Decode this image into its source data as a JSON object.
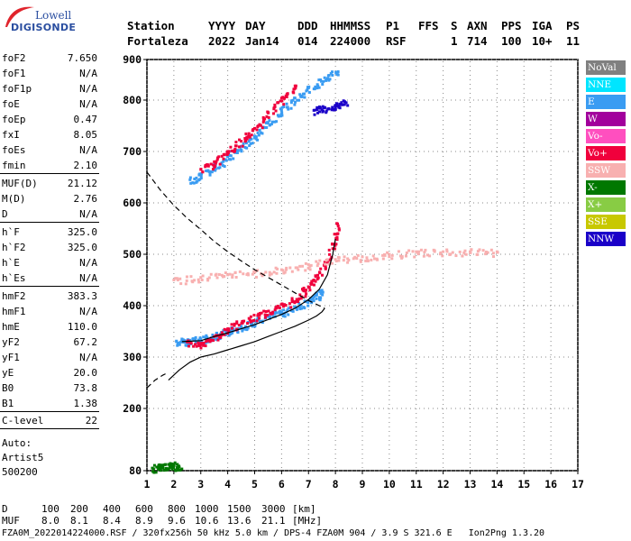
{
  "logo": {
    "line1": "Lowell",
    "line2": "DIGISONDE",
    "swoosh_color": "#e0242c",
    "text_color": "#2a4ea0"
  },
  "header": {
    "row1": [
      "Station",
      "YYYY",
      "DAY",
      "DDD",
      "HHMMSS",
      "P1",
      "FFS",
      "S",
      "AXN",
      "PPS",
      "IGA",
      "PS"
    ],
    "row2": [
      "Fortaleza",
      "2022",
      "Jan14",
      "014",
      "224000",
      "RSF",
      "1",
      "714",
      "100",
      "10+",
      "11"
    ]
  },
  "parameters": [
    {
      "label": "foF2",
      "value": "7.650"
    },
    {
      "label": "foF1",
      "value": "N/A"
    },
    {
      "label": "foF1p",
      "value": "N/A"
    },
    {
      "label": "foE",
      "value": "N/A"
    },
    {
      "label": "foEp",
      "value": "0.47"
    },
    {
      "label": "fxI",
      "value": "8.05"
    },
    {
      "label": "foEs",
      "value": "N/A"
    },
    {
      "label": "fmin",
      "value": "2.10"
    },
    {
      "label": "MUF(D)",
      "value": "21.12"
    },
    {
      "label": "M(D)",
      "value": "2.76"
    },
    {
      "label": "D",
      "value": "N/A"
    },
    {
      "label": "h`F",
      "value": "325.0"
    },
    {
      "label": "h`F2",
      "value": "325.0"
    },
    {
      "label": "h`E",
      "value": "N/A"
    },
    {
      "label": "h`Es",
      "value": "N/A"
    },
    {
      "label": "hmF2",
      "value": "383.3"
    },
    {
      "label": "hmF1",
      "value": "N/A"
    },
    {
      "label": "hmE",
      "value": "110.0"
    },
    {
      "label": "yF2",
      "value": "67.2"
    },
    {
      "label": "yF1",
      "value": "N/A"
    },
    {
      "label": "yE",
      "value": "20.0"
    },
    {
      "label": "B0",
      "value": "73.8"
    },
    {
      "label": "B1",
      "value": "1.38"
    },
    {
      "label": "C-level",
      "value": "22"
    }
  ],
  "autoscaling": {
    "line1": "Auto:",
    "line2": "Artist5",
    "line3": "500200"
  },
  "legend": [
    {
      "label": "NoVal",
      "color": "#808080"
    },
    {
      "label": "NNE",
      "color": "#00e5ff"
    },
    {
      "label": "E",
      "color": "#3a9cf2"
    },
    {
      "label": "W",
      "color": "#a2009c"
    },
    {
      "label": "Vo-",
      "color": "#ff4fbf"
    },
    {
      "label": "Vo+",
      "color": "#f0003c"
    },
    {
      "label": "SSW",
      "color": "#f8b0b0"
    },
    {
      "label": "X-",
      "color": "#007800"
    },
    {
      "label": "X+",
      "color": "#88cc44"
    },
    {
      "label": "SSE",
      "color": "#c8c800"
    },
    {
      "label": "NNW",
      "color": "#1a00c8"
    }
  ],
  "bottom": {
    "d_label": "D",
    "d_values": [
      "100",
      "200",
      "400",
      "600",
      "800",
      "1000",
      "1500",
      "3000",
      "[km]"
    ],
    "muf_label": "MUF",
    "muf_values": [
      "8.0",
      "8.1",
      "8.4",
      "8.9",
      "9.6",
      "10.6",
      "13.6",
      "21.1",
      "[MHz]"
    ],
    "footer": "FZA0M_2022014224000.RSF / 320fx256h 50 kHz 5.0 km / DPS-4 FZA0M 904 / 3.9 S 321.6 E   Ion2Png 1.3.20"
  },
  "chart_data": {
    "type": "scatter",
    "xlim": [
      1,
      17
    ],
    "ylim": [
      80,
      900
    ],
    "x_ticks": [
      "1",
      "2",
      "3",
      "4",
      "5",
      "6",
      "7",
      "8",
      "9",
      "10",
      "11",
      "12",
      "13",
      "14",
      "15",
      "16",
      "17"
    ],
    "y_ticks": [
      "80",
      "200",
      "300",
      "400",
      "500",
      "600",
      "700",
      "800",
      "900"
    ],
    "y_tick_values": [
      80,
      200,
      300,
      400,
      500,
      600,
      700,
      800,
      900
    ],
    "grid": true,
    "traces": [
      {
        "name": "F2 o-trace main",
        "color": "#3a9cf2",
        "points": [
          [
            2.1,
            330
          ],
          [
            2.4,
            332
          ],
          [
            2.8,
            335
          ],
          [
            3.2,
            338
          ],
          [
            3.6,
            342
          ],
          [
            4.0,
            350
          ],
          [
            4.5,
            360
          ],
          [
            5.0,
            370
          ],
          [
            5.5,
            380
          ],
          [
            6.0,
            388
          ],
          [
            6.5,
            398
          ],
          [
            7.0,
            410
          ],
          [
            7.3,
            420
          ],
          [
            7.5,
            430
          ]
        ]
      },
      {
        "name": "F2 x-trace",
        "color": "#f0003c",
        "points": [
          [
            2.5,
            330
          ],
          [
            3.0,
            325
          ],
          [
            3.5,
            340
          ],
          [
            4.0,
            355
          ],
          [
            4.6,
            370
          ],
          [
            5.2,
            385
          ],
          [
            5.8,
            395
          ],
          [
            6.4,
            410
          ],
          [
            6.8,
            430
          ],
          [
            7.2,
            450
          ],
          [
            7.6,
            480
          ],
          [
            7.9,
            520
          ],
          [
            8.05,
            560
          ]
        ]
      },
      {
        "name": "low trace",
        "color": "#007800",
        "points": [
          [
            1.2,
            85
          ],
          [
            1.5,
            88
          ],
          [
            1.8,
            92
          ],
          [
            2.0,
            90
          ],
          [
            2.2,
            87
          ]
        ]
      },
      {
        "name": "multi-hop",
        "color": "#3a9cf2",
        "points": [
          [
            2.6,
            645
          ],
          [
            3.0,
            655
          ],
          [
            3.5,
            670
          ],
          [
            4.0,
            690
          ],
          [
            4.5,
            710
          ],
          [
            5.0,
            730
          ],
          [
            5.5,
            755
          ],
          [
            6.0,
            780
          ],
          [
            6.5,
            805
          ],
          [
            7.0,
            830
          ],
          [
            7.6,
            855
          ],
          [
            8.1,
            870
          ]
        ]
      },
      {
        "name": "multi-hop red",
        "color": "#f0003c",
        "points": [
          [
            3.0,
            665
          ],
          [
            3.5,
            680
          ],
          [
            4.0,
            700
          ],
          [
            4.5,
            720
          ],
          [
            5.0,
            745
          ],
          [
            5.5,
            775
          ],
          [
            6.0,
            805
          ],
          [
            6.5,
            835
          ]
        ]
      },
      {
        "name": "spread band",
        "color": "#f8b0b0",
        "points": [
          [
            2.0,
            450
          ],
          [
            3.0,
            455
          ],
          [
            4.0,
            460
          ],
          [
            5.0,
            465
          ],
          [
            6.0,
            470
          ],
          [
            7.0,
            480
          ],
          [
            8.0,
            490
          ],
          [
            9.0,
            495
          ],
          [
            10.0,
            500
          ],
          [
            11.0,
            505
          ],
          [
            12.0,
            505
          ],
          [
            13.0,
            505
          ],
          [
            14.0,
            505
          ]
        ]
      },
      {
        "name": "blue high",
        "color": "#1a00c8",
        "points": [
          [
            7.2,
            780
          ],
          [
            7.6,
            785
          ],
          [
            8.0,
            790
          ],
          [
            8.4,
            795
          ]
        ]
      }
    ],
    "lines": [
      {
        "name": "true-height profile",
        "style": "solid",
        "points": [
          [
            1.8,
            255
          ],
          [
            2.2,
            275
          ],
          [
            2.6,
            290
          ],
          [
            3.0,
            300
          ],
          [
            3.5,
            306
          ],
          [
            4.0,
            314
          ],
          [
            4.5,
            322
          ],
          [
            5.0,
            330
          ],
          [
            5.5,
            340
          ],
          [
            6.0,
            350
          ],
          [
            6.5,
            360
          ],
          [
            7.0,
            372
          ],
          [
            7.3,
            380
          ],
          [
            7.5,
            388
          ],
          [
            7.6,
            395
          ]
        ]
      },
      {
        "name": "F2 model curve",
        "style": "solid",
        "points": [
          [
            2.3,
            330
          ],
          [
            3.0,
            332
          ],
          [
            3.5,
            340
          ],
          [
            4.0,
            347
          ],
          [
            4.5,
            355
          ],
          [
            5.0,
            363
          ],
          [
            5.5,
            373
          ],
          [
            6.0,
            383
          ],
          [
            6.5,
            395
          ],
          [
            7.0,
            412
          ],
          [
            7.4,
            432
          ],
          [
            7.7,
            460
          ],
          [
            7.9,
            500
          ],
          [
            8.0,
            530
          ]
        ]
      },
      {
        "name": "topside upper",
        "style": "dashed",
        "points": [
          [
            1.0,
            660
          ],
          [
            1.5,
            625
          ],
          [
            2.0,
            595
          ],
          [
            2.5,
            570
          ],
          [
            3.0,
            548
          ],
          [
            3.5,
            525
          ],
          [
            4.0,
            505
          ],
          [
            4.5,
            487
          ],
          [
            5.0,
            470
          ],
          [
            5.5,
            455
          ],
          [
            6.0,
            440
          ],
          [
            6.5,
            425
          ],
          [
            7.0,
            410
          ],
          [
            7.4,
            400
          ],
          [
            7.6,
            395
          ]
        ]
      },
      {
        "name": "bottom dashed",
        "style": "dashed",
        "points": [
          [
            1.0,
            240
          ],
          [
            1.3,
            255
          ],
          [
            1.6,
            265
          ],
          [
            1.8,
            270
          ]
        ]
      }
    ]
  }
}
